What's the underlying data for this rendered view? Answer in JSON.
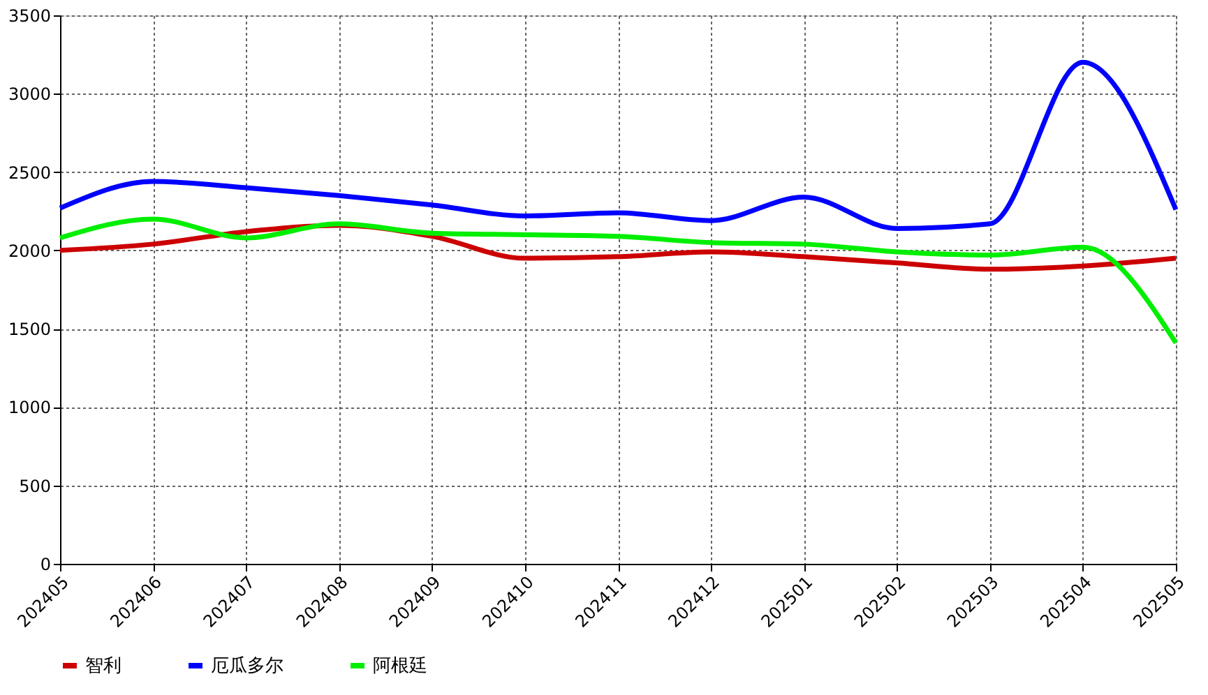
{
  "chart_data": {
    "type": "line",
    "categories": [
      "202405",
      "202406",
      "202407",
      "202408",
      "202409",
      "202410",
      "202411",
      "202412",
      "202501",
      "202502",
      "202503",
      "202504",
      "202505"
    ],
    "series": [
      {
        "name": "智利",
        "color": "#cc0000",
        "values": [
          2000,
          2040,
          2120,
          2160,
          2090,
          1950,
          1960,
          1990,
          1960,
          1920,
          1880,
          1900,
          1950
        ]
      },
      {
        "name": "厄瓜多尔",
        "color": "#0000ff",
        "values": [
          2270,
          2440,
          2400,
          2350,
          2290,
          2220,
          2240,
          2190,
          2340,
          2140,
          2170,
          3200,
          2260
        ]
      },
      {
        "name": "阿根廷",
        "color": "#00ee00",
        "values": [
          2080,
          2200,
          2080,
          2170,
          2110,
          2100,
          2090,
          2050,
          2040,
          1990,
          1970,
          2020,
          1410
        ]
      }
    ],
    "ylim": [
      0,
      3500
    ],
    "yticks": [
      0,
      500,
      1000,
      1500,
      2000,
      2500,
      3000,
      3500
    ],
    "grid": true,
    "legend": "bottom",
    "marker": "none",
    "line_style": "solid"
  }
}
